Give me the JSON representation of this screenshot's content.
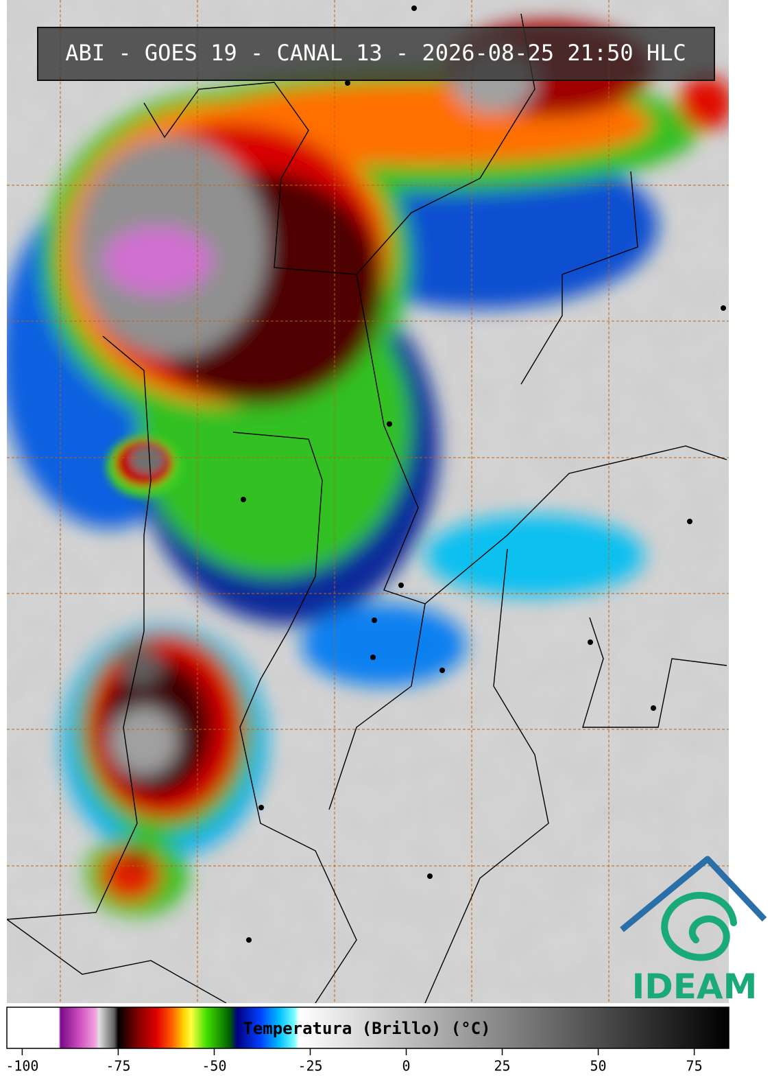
{
  "title": "ABI - GOES 19 - CANAL 13 - 2026-08-25 21:50 HLC",
  "colorbar": {
    "label": "Temperatura (Brillo) (°C)",
    "lim": [
      -104,
      84
    ],
    "ticks": [
      -100,
      -75,
      -50,
      -25,
      0,
      25,
      50,
      75
    ],
    "stops": [
      [
        -104,
        "#ffffff"
      ],
      [
        -90.5,
        "#ffffff"
      ],
      [
        -90,
        "#7a0a8a"
      ],
      [
        -85,
        "#d050c0"
      ],
      [
        -81,
        "#f0a0e0"
      ],
      [
        -80,
        "#e0e0e0"
      ],
      [
        -76,
        "#606060"
      ],
      [
        -75,
        "#000000"
      ],
      [
        -70,
        "#800000"
      ],
      [
        -65,
        "#e00000"
      ],
      [
        -61,
        "#ff6000"
      ],
      [
        -58,
        "#ffd000"
      ],
      [
        -56,
        "#ffff40"
      ],
      [
        -52,
        "#40e000"
      ],
      [
        -46,
        "#006000"
      ],
      [
        -44,
        "#000080"
      ],
      [
        -38,
        "#0040ff"
      ],
      [
        -33,
        "#00c0ff"
      ],
      [
        -29,
        "#80ffff"
      ],
      [
        -28,
        "#ffffff"
      ],
      [
        84,
        "#000000"
      ]
    ]
  },
  "logo": {
    "text": "IDEAM"
  }
}
